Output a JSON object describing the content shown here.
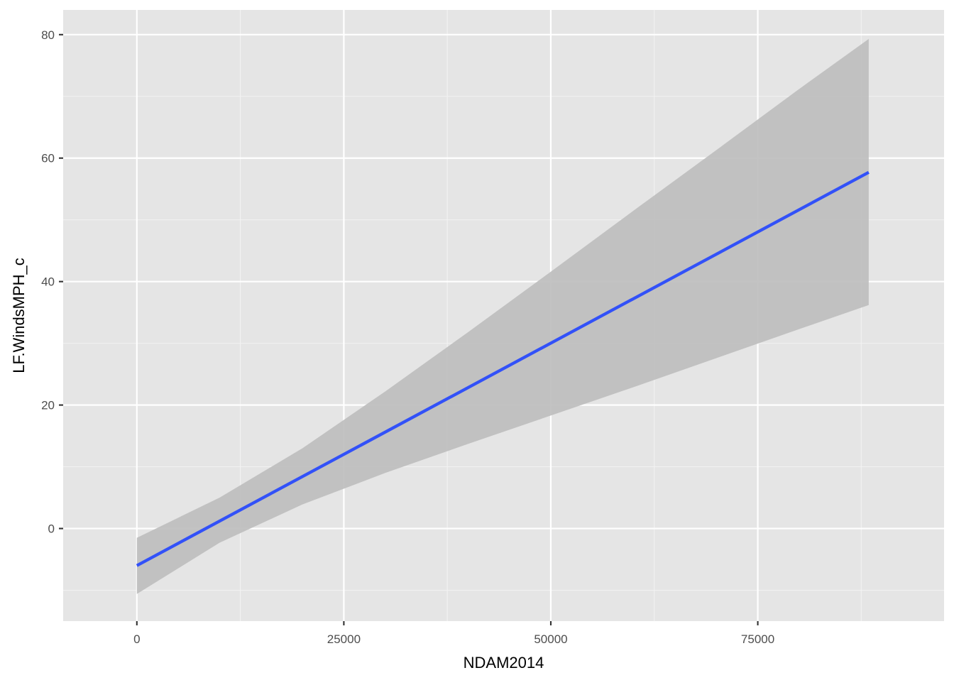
{
  "chart_data": {
    "type": "line",
    "title": "",
    "xlabel": "NDAM2014",
    "ylabel": "LF.WindsMPH_c",
    "xlim": [
      -8900,
      97500
    ],
    "ylim": [
      -15,
      84
    ],
    "x_ticks": [
      {
        "value": 0,
        "label": "0"
      },
      {
        "value": 25000,
        "label": "25000"
      },
      {
        "value": 50000,
        "label": "50000"
      },
      {
        "value": 75000,
        "label": "75000"
      }
    ],
    "y_ticks": [
      {
        "value": 0,
        "label": "0"
      },
      {
        "value": 20,
        "label": "20"
      },
      {
        "value": 40,
        "label": "40"
      },
      {
        "value": 60,
        "label": "60"
      },
      {
        "value": 80,
        "label": "80"
      }
    ],
    "x_minor_breaks": [
      12500,
      37500,
      62500,
      87500
    ],
    "y_minor_breaks": [
      -10,
      10,
      30,
      50,
      70
    ],
    "grid": true,
    "legend": "none",
    "series": [
      {
        "kind": "fit-line",
        "x": [
          0,
          88400
        ],
        "y": [
          -6.0,
          57.7
        ]
      }
    ],
    "confidence_band": {
      "x": [
        0,
        10000,
        20000,
        30000,
        40000,
        50000,
        60000,
        70000,
        80000,
        88400
      ],
      "lower": [
        -10.6,
        -2.3,
        3.9,
        9.0,
        13.7,
        18.3,
        22.9,
        27.6,
        32.3,
        36.2
      ],
      "upper": [
        -1.5,
        5.0,
        13.0,
        22.2,
        31.8,
        41.6,
        51.5,
        61.3,
        71.2,
        79.3
      ]
    },
    "colors": {
      "panel_background": "#e5e5e5",
      "grid_major": "#ffffff",
      "grid_minor": "#f2f2f2",
      "line": "#3251f8",
      "band": "#bdbdbd",
      "tick_text": "#4d4d4d",
      "axis_title": "#000000",
      "tick_mark": "#333333"
    }
  }
}
